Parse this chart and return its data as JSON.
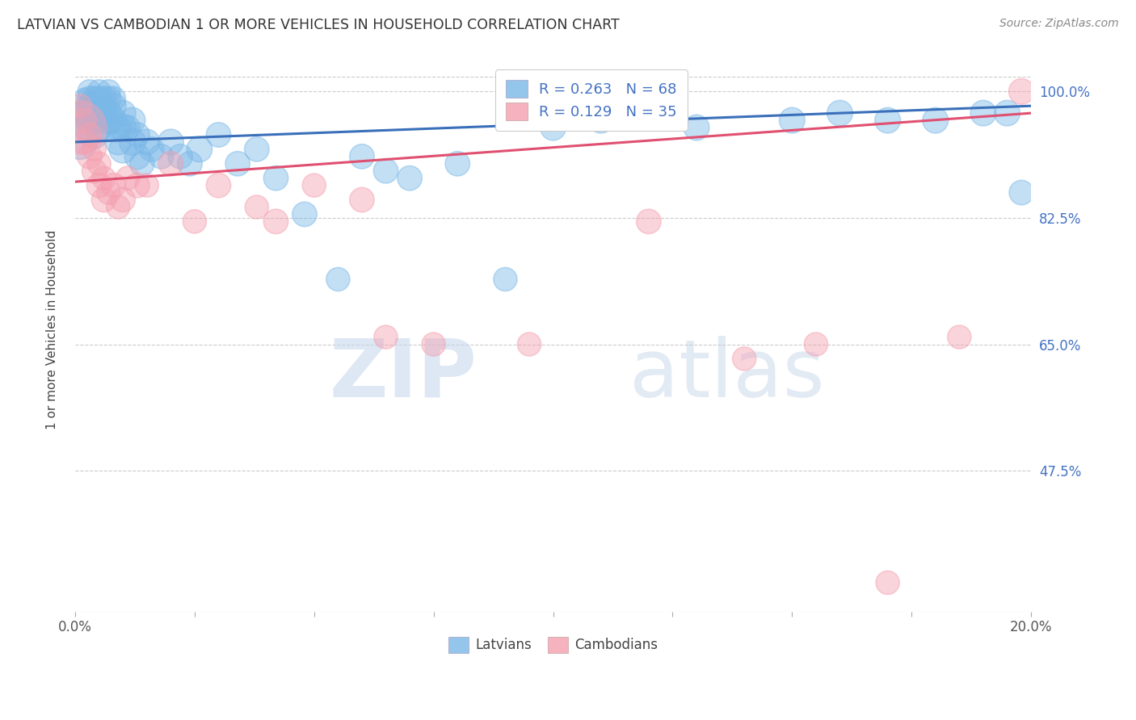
{
  "title": "LATVIAN VS CAMBODIAN 1 OR MORE VEHICLES IN HOUSEHOLD CORRELATION CHART",
  "source": "Source: ZipAtlas.com",
  "ylabel": "1 or more Vehicles in Household",
  "xmin": 0.0,
  "xmax": 0.2,
  "ymin": 0.28,
  "ymax": 1.06,
  "yticks": [
    0.475,
    0.65,
    0.825,
    1.0
  ],
  "ytick_labels": [
    "47.5%",
    "65.0%",
    "82.5%",
    "100.0%"
  ],
  "xticks": [
    0.0,
    0.025,
    0.05,
    0.075,
    0.1,
    0.125,
    0.15,
    0.175,
    0.2
  ],
  "xtick_labels": [
    "0.0%",
    "",
    "",
    "",
    "",
    "",
    "",
    "",
    "20.0%"
  ],
  "watermark_zip": "ZIP",
  "watermark_atlas": "atlas",
  "legend_latvian_label": "Latvians",
  "legend_cambodian_label": "Cambodians",
  "latvian_R": 0.263,
  "latvian_N": 68,
  "cambodian_R": 0.129,
  "cambodian_N": 35,
  "latvian_color": "#7ab8e8",
  "cambodian_color": "#f4a0b0",
  "latvian_line_color": "#3a6fba",
  "cambodian_line_color": "#e05070",
  "background_color": "#ffffff",
  "latvian_x": [
    0.001,
    0.001,
    0.002,
    0.002,
    0.002,
    0.003,
    0.003,
    0.003,
    0.003,
    0.004,
    0.004,
    0.004,
    0.004,
    0.005,
    0.005,
    0.005,
    0.005,
    0.005,
    0.006,
    0.006,
    0.006,
    0.006,
    0.007,
    0.007,
    0.007,
    0.007,
    0.008,
    0.008,
    0.008,
    0.009,
    0.009,
    0.01,
    0.01,
    0.01,
    0.011,
    0.012,
    0.012,
    0.013,
    0.013,
    0.014,
    0.015,
    0.016,
    0.018,
    0.02,
    0.022,
    0.024,
    0.026,
    0.03,
    0.034,
    0.038,
    0.042,
    0.048,
    0.055,
    0.06,
    0.065,
    0.07,
    0.08,
    0.09,
    0.1,
    0.11,
    0.13,
    0.15,
    0.16,
    0.17,
    0.18,
    0.19,
    0.195,
    0.198
  ],
  "latvian_y": [
    0.97,
    0.93,
    0.99,
    0.97,
    0.95,
    1.0,
    0.99,
    0.98,
    0.96,
    0.99,
    0.98,
    0.96,
    0.94,
    1.0,
    0.99,
    0.98,
    0.97,
    0.95,
    0.99,
    0.98,
    0.97,
    0.95,
    1.0,
    0.99,
    0.97,
    0.96,
    0.99,
    0.98,
    0.96,
    0.95,
    0.93,
    0.97,
    0.95,
    0.92,
    0.95,
    0.96,
    0.93,
    0.94,
    0.91,
    0.9,
    0.93,
    0.92,
    0.91,
    0.93,
    0.91,
    0.9,
    0.92,
    0.94,
    0.9,
    0.92,
    0.88,
    0.83,
    0.74,
    0.91,
    0.89,
    0.88,
    0.9,
    0.74,
    0.95,
    0.96,
    0.95,
    0.96,
    0.97,
    0.96,
    0.96,
    0.97,
    0.97,
    0.86
  ],
  "latvian_sizes": [
    55,
    120,
    45,
    50,
    55,
    55,
    60,
    65,
    70,
    60,
    65,
    70,
    75,
    55,
    60,
    65,
    70,
    75,
    60,
    65,
    70,
    75,
    55,
    60,
    65,
    70,
    60,
    65,
    70,
    60,
    65,
    65,
    70,
    75,
    60,
    65,
    70,
    60,
    65,
    60,
    65,
    60,
    60,
    65,
    60,
    60,
    65,
    60,
    60,
    60,
    60,
    60,
    55,
    60,
    60,
    60,
    60,
    55,
    65,
    65,
    65,
    65,
    65,
    65,
    65,
    65,
    65,
    60
  ],
  "cambodian_x": [
    0.001,
    0.001,
    0.002,
    0.002,
    0.003,
    0.003,
    0.004,
    0.004,
    0.005,
    0.005,
    0.006,
    0.006,
    0.007,
    0.008,
    0.009,
    0.01,
    0.011,
    0.013,
    0.015,
    0.02,
    0.025,
    0.03,
    0.038,
    0.042,
    0.05,
    0.06,
    0.065,
    0.075,
    0.095,
    0.12,
    0.14,
    0.155,
    0.17,
    0.185,
    0.198
  ],
  "cambodian_y": [
    0.98,
    0.95,
    0.96,
    0.93,
    0.94,
    0.91,
    0.92,
    0.89,
    0.9,
    0.87,
    0.88,
    0.85,
    0.86,
    0.87,
    0.84,
    0.85,
    0.88,
    0.87,
    0.87,
    0.9,
    0.82,
    0.87,
    0.84,
    0.82,
    0.87,
    0.85,
    0.66,
    0.65,
    0.65,
    0.82,
    0.63,
    0.65,
    0.32,
    0.66,
    1.0
  ],
  "cambodian_sizes": [
    55,
    280,
    55,
    60,
    55,
    60,
    55,
    60,
    55,
    60,
    55,
    60,
    55,
    60,
    55,
    60,
    55,
    60,
    55,
    60,
    55,
    60,
    55,
    60,
    55,
    60,
    55,
    55,
    55,
    60,
    55,
    55,
    55,
    55,
    65
  ]
}
